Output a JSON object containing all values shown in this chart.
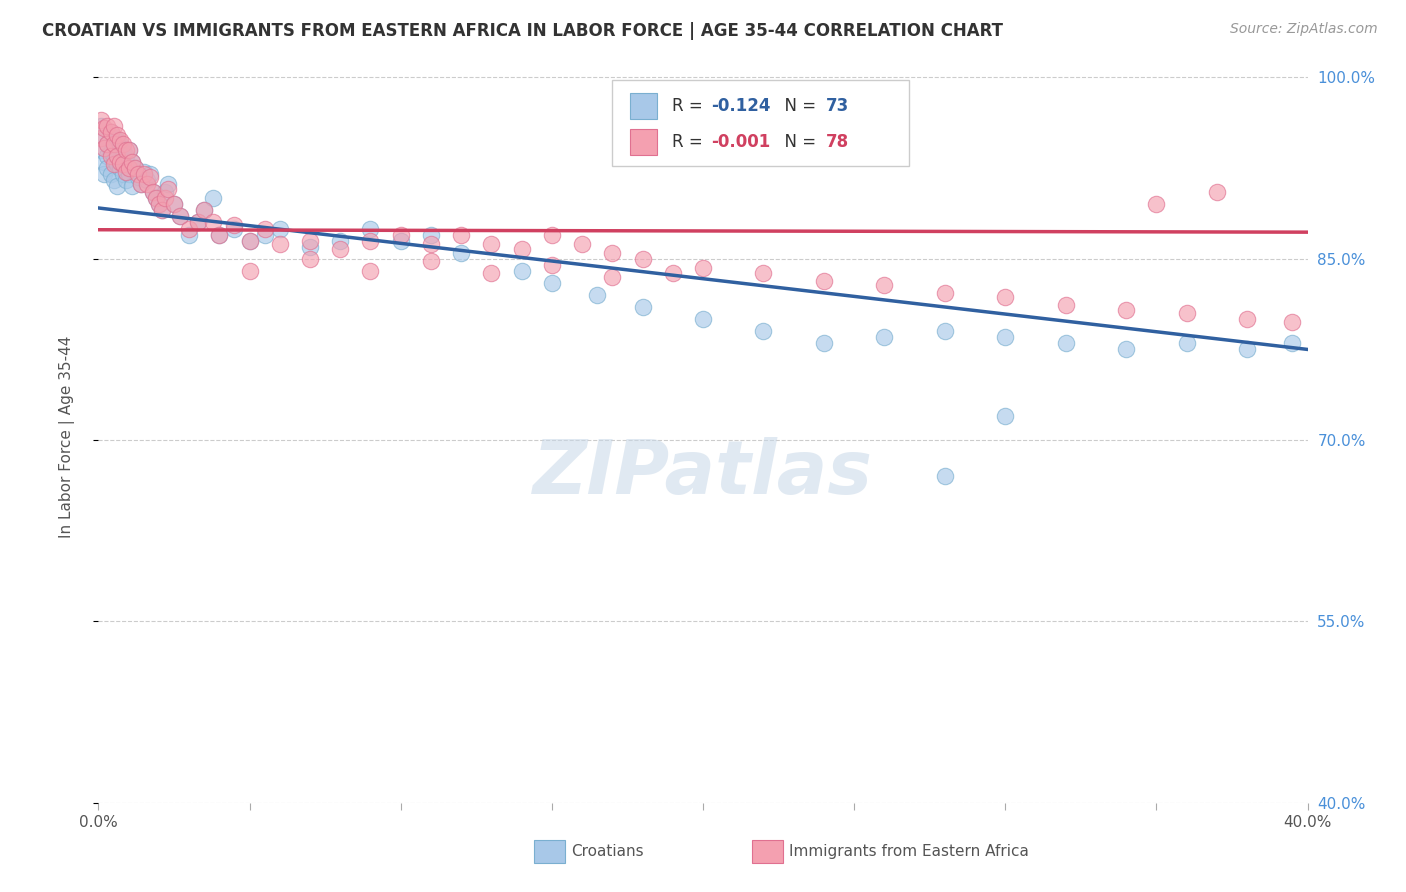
{
  "title": "CROATIAN VS IMMIGRANTS FROM EASTERN AFRICA IN LABOR FORCE | AGE 35-44 CORRELATION CHART",
  "source": "Source: ZipAtlas.com",
  "ylabel": "In Labor Force | Age 35-44",
  "xmin": 0.0,
  "xmax": 0.4,
  "ymin": 0.4,
  "ymax": 1.005,
  "yticks": [
    0.4,
    0.55,
    0.7,
    0.85,
    1.0
  ],
  "ytick_labels": [
    "40.0%",
    "55.0%",
    "70.0%",
    "85.0%",
    "100.0%"
  ],
  "xticks": [
    0.0,
    0.05,
    0.1,
    0.15,
    0.2,
    0.25,
    0.3,
    0.35,
    0.4
  ],
  "xtick_labels": [
    "0.0%",
    "",
    "",
    "",
    "",
    "",
    "",
    "",
    "40.0%"
  ],
  "legend_blue_r_val": "-0.124",
  "legend_blue_n_val": "73",
  "legend_pink_r_val": "-0.001",
  "legend_pink_n_val": "78",
  "croatian_label": "Croatians",
  "immigrant_label": "Immigrants from Eastern Africa",
  "blue_color": "#a8c8e8",
  "pink_color": "#f4a0b0",
  "blue_edge_color": "#7aafd0",
  "pink_edge_color": "#e07090",
  "blue_line_color": "#3060a0",
  "pink_line_color": "#d04060",
  "watermark": "ZIPatlas",
  "blue_scatter_x": [
    0.001,
    0.001,
    0.002,
    0.002,
    0.002,
    0.003,
    0.003,
    0.003,
    0.004,
    0.004,
    0.004,
    0.005,
    0.005,
    0.005,
    0.006,
    0.006,
    0.006,
    0.007,
    0.007,
    0.008,
    0.008,
    0.009,
    0.009,
    0.01,
    0.01,
    0.011,
    0.011,
    0.012,
    0.013,
    0.014,
    0.015,
    0.016,
    0.017,
    0.018,
    0.019,
    0.02,
    0.021,
    0.022,
    0.023,
    0.025,
    0.027,
    0.03,
    0.033,
    0.035,
    0.038,
    0.04,
    0.045,
    0.05,
    0.055,
    0.06,
    0.07,
    0.08,
    0.09,
    0.1,
    0.11,
    0.12,
    0.14,
    0.15,
    0.165,
    0.18,
    0.2,
    0.22,
    0.24,
    0.26,
    0.28,
    0.3,
    0.32,
    0.34,
    0.36,
    0.38,
    0.395,
    0.3,
    0.28
  ],
  "blue_scatter_y": [
    0.96,
    0.94,
    0.95,
    0.93,
    0.92,
    0.945,
    0.935,
    0.925,
    0.955,
    0.938,
    0.92,
    0.95,
    0.932,
    0.915,
    0.948,
    0.928,
    0.91,
    0.945,
    0.925,
    0.94,
    0.92,
    0.935,
    0.915,
    0.94,
    0.92,
    0.93,
    0.91,
    0.925,
    0.918,
    0.912,
    0.922,
    0.915,
    0.92,
    0.905,
    0.9,
    0.895,
    0.89,
    0.905,
    0.912,
    0.895,
    0.885,
    0.87,
    0.88,
    0.89,
    0.9,
    0.87,
    0.875,
    0.865,
    0.87,
    0.875,
    0.86,
    0.865,
    0.875,
    0.865,
    0.87,
    0.855,
    0.84,
    0.83,
    0.82,
    0.81,
    0.8,
    0.79,
    0.78,
    0.785,
    0.79,
    0.785,
    0.78,
    0.775,
    0.78,
    0.775,
    0.78,
    0.72,
    0.67
  ],
  "pink_scatter_x": [
    0.001,
    0.001,
    0.002,
    0.002,
    0.003,
    0.003,
    0.004,
    0.004,
    0.005,
    0.005,
    0.005,
    0.006,
    0.006,
    0.007,
    0.007,
    0.008,
    0.008,
    0.009,
    0.009,
    0.01,
    0.01,
    0.011,
    0.012,
    0.013,
    0.014,
    0.015,
    0.016,
    0.017,
    0.018,
    0.019,
    0.02,
    0.021,
    0.022,
    0.023,
    0.025,
    0.027,
    0.03,
    0.033,
    0.035,
    0.038,
    0.04,
    0.045,
    0.05,
    0.055,
    0.06,
    0.07,
    0.08,
    0.09,
    0.1,
    0.11,
    0.12,
    0.13,
    0.14,
    0.15,
    0.16,
    0.17,
    0.18,
    0.2,
    0.22,
    0.24,
    0.26,
    0.28,
    0.3,
    0.32,
    0.34,
    0.36,
    0.38,
    0.395,
    0.05,
    0.07,
    0.09,
    0.11,
    0.13,
    0.15,
    0.17,
    0.19,
    0.35,
    0.37
  ],
  "pink_scatter_y": [
    0.965,
    0.95,
    0.958,
    0.942,
    0.96,
    0.945,
    0.955,
    0.935,
    0.96,
    0.945,
    0.928,
    0.952,
    0.935,
    0.948,
    0.93,
    0.945,
    0.928,
    0.94,
    0.922,
    0.94,
    0.925,
    0.93,
    0.925,
    0.92,
    0.912,
    0.92,
    0.912,
    0.918,
    0.905,
    0.9,
    0.895,
    0.89,
    0.9,
    0.908,
    0.895,
    0.885,
    0.875,
    0.88,
    0.89,
    0.88,
    0.87,
    0.878,
    0.865,
    0.875,
    0.862,
    0.865,
    0.858,
    0.865,
    0.87,
    0.862,
    0.87,
    0.862,
    0.858,
    0.87,
    0.862,
    0.855,
    0.85,
    0.842,
    0.838,
    0.832,
    0.828,
    0.822,
    0.818,
    0.812,
    0.808,
    0.805,
    0.8,
    0.798,
    0.84,
    0.85,
    0.84,
    0.848,
    0.838,
    0.845,
    0.835,
    0.838,
    0.895,
    0.905
  ],
  "blue_line_x0": 0.0,
  "blue_line_x1": 0.4,
  "blue_line_y0": 0.892,
  "blue_line_y1": 0.775,
  "pink_line_x0": 0.0,
  "pink_line_x1": 0.4,
  "pink_line_y0": 0.874,
  "pink_line_y1": 0.872,
  "background_color": "#ffffff",
  "grid_color": "#cccccc",
  "title_color": "#333333",
  "axis_label_color": "#555555",
  "right_tick_color": "#4a90d9"
}
